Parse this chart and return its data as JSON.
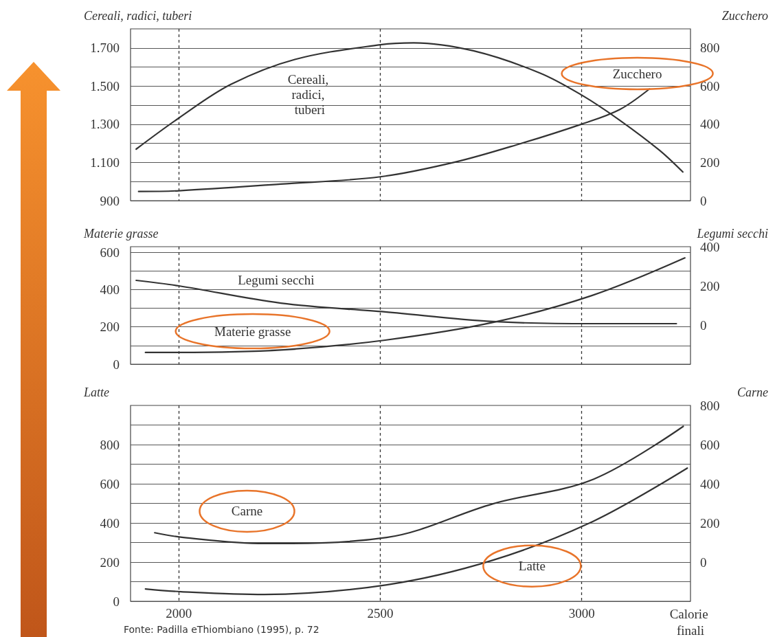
{
  "chart_data": [
    {
      "type": "line",
      "ylabel": "Cereali, radici, tuberi",
      "y2label": "Zucchero",
      "xlim": [
        1880,
        3270
      ],
      "xticks": [
        2000,
        2500,
        3000
      ],
      "ylim": [
        900,
        1800
      ],
      "yticks": [
        900,
        {
          "value": 1000,
          "label": null
        },
        {
          "value": 1100,
          "label": "1.100"
        },
        {
          "value": 1200,
          "label": null
        },
        {
          "value": 1300,
          "label": "1.300"
        },
        {
          "value": 1400,
          "label": null
        },
        {
          "value": 1500,
          "label": "1.500"
        },
        {
          "value": 1600,
          "label": null
        },
        {
          "value": 1700,
          "label": "1.700"
        }
      ],
      "y2lim": [
        0,
        900
      ],
      "y2ticks": [
        0,
        200,
        400,
        600,
        800
      ],
      "grid": true,
      "legend": false,
      "tick_labels": "y",
      "series": [
        {
          "name": "Cereali, radici, tuberi",
          "color": "#333333",
          "x": [
            1894,
            2000,
            2129,
            2288,
            2500,
            2583,
            2731,
            2896,
            3000,
            3094,
            3193,
            3251
          ],
          "values": [
            1170,
            1333,
            1509,
            1640,
            1717,
            1727,
            1685,
            1569,
            1453,
            1322,
            1164,
            1050
          ]
        },
        {
          "name": "Zucchero",
          "color": "#333333",
          "axis": "y2",
          "x": [
            1900,
            2000,
            2253,
            2500,
            2682,
            2847,
            3000,
            3094,
            3168
          ],
          "values": [
            48,
            52,
            87,
            125,
            200,
            298,
            401,
            477,
            585
          ]
        }
      ]
    },
    {
      "type": "line",
      "ylabel": "Materie grasse",
      "y2label": "Legumi secchi",
      "xlim": [
        1880,
        3270
      ],
      "xticks": [
        2000,
        2500,
        3000
      ],
      "ylim": [
        0,
        630
      ],
      "yticks": [
        0,
        {
          "value": 100,
          "label": null
        },
        200,
        {
          "value": 300,
          "label": null
        },
        400,
        {
          "value": 500,
          "label": null
        },
        600
      ],
      "y2lim": [
        -200,
        400
      ],
      "y2ticks": [
        0,
        200,
        400
      ],
      "grid": true,
      "legend": false,
      "tick_labels": "y",
      "series": [
        {
          "name": "Legumi secchi",
          "color": "#333333",
          "axis": "y2",
          "x": [
            1894,
            2000,
            2253,
            2512,
            2780,
            3025,
            3235
          ],
          "values": [
            228,
            200,
            112,
            67,
            18,
            7,
            7
          ]
        },
        {
          "name": "Materie grasse",
          "color": "#333333",
          "x": [
            1917,
            2000,
            2259,
            2512,
            2780,
            3025,
            3256
          ],
          "values": [
            63,
            63,
            77,
            129,
            224,
            368,
            570
          ]
        }
      ]
    },
    {
      "type": "line",
      "ylabel": "Latte",
      "y2label": "Carne",
      "xlabel": "Calorie finali",
      "annotations": [
        "Fonte: Padilla eThiombiano (1995), p. 72"
      ],
      "xlim": [
        1880,
        3270
      ],
      "xticks": [
        2000,
        2500,
        3000
      ],
      "ylim": [
        0,
        1000
      ],
      "yticks": [
        0,
        {
          "value": 100,
          "label": null
        },
        200,
        {
          "value": 300,
          "label": null
        },
        400,
        {
          "value": 500,
          "label": null
        },
        600,
        {
          "value": 700,
          "label": null
        },
        800,
        {
          "value": 900,
          "label": null
        }
      ],
      "y2lim": [
        -200,
        800
      ],
      "y2ticks": [
        0,
        200,
        400,
        600,
        800
      ],
      "grid": true,
      "legend": false,
      "series": [
        {
          "name": "Carne",
          "color": "#333333",
          "axis": "y2",
          "x": [
            1940,
            2011,
            2212,
            2516,
            2780,
            3030,
            3252
          ],
          "values": [
            150,
            126,
            95,
            126,
            298,
            424,
            693
          ]
        },
        {
          "name": "Latte",
          "color": "#333333",
          "x": [
            1917,
            2005,
            2212,
            2516,
            2780,
            3030,
            3262
          ],
          "values": [
            63,
            49,
            35,
            84,
            210,
            410,
            680
          ]
        }
      ]
    }
  ]
}
